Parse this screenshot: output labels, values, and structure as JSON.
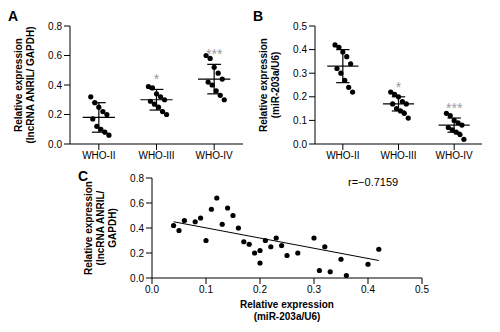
{
  "chart_data": [
    {
      "type": "scatter",
      "title": "A",
      "categories": [
        "WHO-II",
        "WHO-III",
        "WHO-IV"
      ],
      "points": [
        [
          0.32,
          0.28,
          0.25,
          0.22,
          0.2,
          0.17,
          0.12,
          0.1,
          0.08,
          0.06
        ],
        [
          0.39,
          0.38,
          0.34,
          0.32,
          0.3,
          0.29,
          0.27,
          0.25,
          0.22,
          0.2
        ],
        [
          0.6,
          0.58,
          0.52,
          0.48,
          0.44,
          0.42,
          0.4,
          0.36,
          0.33,
          0.3
        ]
      ],
      "mean": [
        0.18,
        0.3,
        0.44
      ],
      "sd": [
        0.1,
        0.07,
        0.1
      ],
      "annotations": [
        null,
        "*",
        "***"
      ],
      "ylabel": "Relative expression\n(lncRNA ANRIL/ GAPDH)",
      "ylim": [
        0,
        0.8
      ],
      "yticks": [
        {
          "value": 0,
          "label": "0.0"
        },
        {
          "value": 0.2,
          "label": "0.2"
        },
        {
          "value": 0.4,
          "label": "0.4"
        },
        {
          "value": 0.6,
          "label": "0.6"
        },
        {
          "value": 0.8,
          "label": "0.8"
        }
      ],
      "color": "#000000",
      "marker": "circle",
      "grid": false
    },
    {
      "type": "scatter",
      "title": "B",
      "categories": [
        "WHO-II",
        "WHO-III",
        "WHO-IV"
      ],
      "points": [
        [
          0.42,
          0.41,
          0.39,
          0.37,
          0.34,
          0.32,
          0.3,
          0.27,
          0.24,
          0.22
        ],
        [
          0.22,
          0.21,
          0.2,
          0.18,
          0.17,
          0.17,
          0.15,
          0.14,
          0.13,
          0.11
        ],
        [
          0.13,
          0.12,
          0.1,
          0.09,
          0.08,
          0.07,
          0.06,
          0.05,
          0.04,
          0.02
        ]
      ],
      "mean": [
        0.33,
        0.17,
        0.08
      ],
      "sd": [
        0.07,
        0.03,
        0.03
      ],
      "annotations": [
        null,
        "*",
        "***"
      ],
      "ylabel": "Relative expression\n(miR-203a/U6)",
      "ylim": [
        0,
        0.5
      ],
      "yticks": [
        {
          "value": 0,
          "label": "0.0"
        },
        {
          "value": 0.1,
          "label": "0.1"
        },
        {
          "value": 0.2,
          "label": "0.2"
        },
        {
          "value": 0.3,
          "label": "0.3"
        },
        {
          "value": 0.4,
          "label": "0.4"
        },
        {
          "value": 0.5,
          "label": "0.5"
        }
      ],
      "color": "#000000",
      "marker": "circle",
      "grid": false
    },
    {
      "type": "scatter",
      "title": "C",
      "x": [
        0.04,
        0.05,
        0.06,
        0.08,
        0.09,
        0.1,
        0.11,
        0.12,
        0.13,
        0.14,
        0.15,
        0.16,
        0.17,
        0.18,
        0.19,
        0.2,
        0.2,
        0.21,
        0.22,
        0.23,
        0.24,
        0.25,
        0.27,
        0.3,
        0.31,
        0.32,
        0.33,
        0.35,
        0.36,
        0.4,
        0.42
      ],
      "values": [
        0.42,
        0.38,
        0.46,
        0.45,
        0.48,
        0.3,
        0.55,
        0.64,
        0.43,
        0.56,
        0.5,
        0.4,
        0.29,
        0.27,
        0.2,
        0.22,
        0.12,
        0.3,
        0.25,
        0.32,
        0.26,
        0.18,
        0.2,
        0.32,
        0.06,
        0.25,
        0.05,
        0.15,
        0.02,
        0.11,
        0.23
      ],
      "fit": {
        "x": [
          0.04,
          0.42
        ],
        "y": [
          0.45,
          0.14
        ]
      },
      "annotations": [
        "r=−0.7159"
      ],
      "xlabel": "Relative expression\n(miR-203a/U6)",
      "ylabel": "Relative expression\n(lncRNA ANRIL/\nGAPDH)",
      "xlim": [
        0,
        0.5
      ],
      "xticks": [
        {
          "value": 0,
          "label": "0.0"
        },
        {
          "value": 0.1,
          "label": "0.1"
        },
        {
          "value": 0.2,
          "label": "0.2"
        },
        {
          "value": 0.3,
          "label": "0.3"
        },
        {
          "value": 0.4,
          "label": "0.4"
        },
        {
          "value": 0.5,
          "label": "0.5"
        }
      ],
      "ylim": [
        0,
        0.8
      ],
      "yticks": [
        {
          "value": 0,
          "label": "0.0"
        },
        {
          "value": 0.2,
          "label": "0.2"
        },
        {
          "value": 0.4,
          "label": "0.4"
        },
        {
          "value": 0.6,
          "label": "0.6"
        },
        {
          "value": 0.8,
          "label": "0.8"
        }
      ],
      "color": "#000000",
      "marker": "circle",
      "grid": false
    }
  ]
}
